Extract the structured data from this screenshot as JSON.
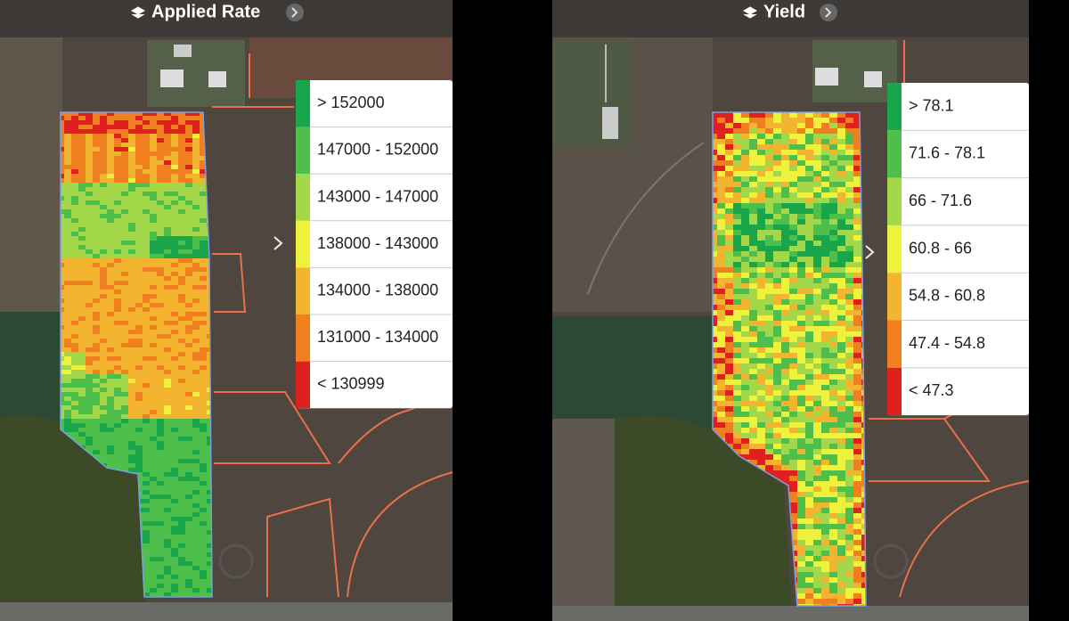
{
  "panels": [
    {
      "title": "Applied Rate",
      "legend": [
        {
          "label": "> 152000",
          "color": "#19a64a"
        },
        {
          "label": "147000 - 152000",
          "color": "#4fbf4c"
        },
        {
          "label": "143000 - 147000",
          "color": "#a2d84a"
        },
        {
          "label": "138000 - 143000",
          "color": "#eef23a"
        },
        {
          "label": "134000 - 138000",
          "color": "#f3b430"
        },
        {
          "label": "131000 - 134000",
          "color": "#ef7f1f"
        },
        {
          "label": "< 130999",
          "color": "#e0201f"
        }
      ]
    },
    {
      "title": "Yield",
      "legend": [
        {
          "label": "> 78.1",
          "color": "#19a64a"
        },
        {
          "label": "71.6 - 78.1",
          "color": "#4fbf4c"
        },
        {
          "label": "66 - 71.6",
          "color": "#a2d84a"
        },
        {
          "label": "60.8 - 66",
          "color": "#eef23a"
        },
        {
          "label": "54.8 - 60.8",
          "color": "#f3b430"
        },
        {
          "label": "47.4 - 54.8",
          "color": "#ef7f1f"
        },
        {
          "label": "< 47.3",
          "color": "#e0201f"
        }
      ]
    }
  ]
}
